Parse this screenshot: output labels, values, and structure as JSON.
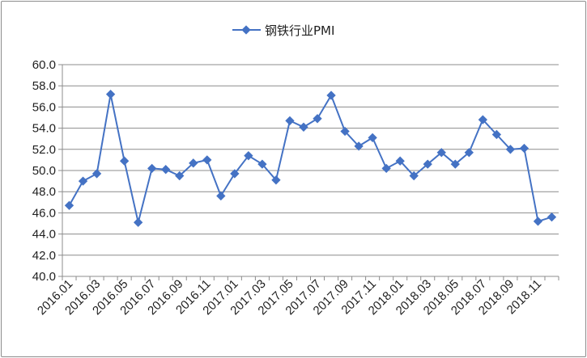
{
  "chart_data": {
    "type": "line",
    "title": "",
    "xlabel": "",
    "ylabel": "",
    "legend": {
      "position": "top-center"
    },
    "grid": {
      "horizontal": true,
      "vertical": false
    },
    "ylim": [
      40.0,
      60.0
    ],
    "yticks": [
      "40.0",
      "42.0",
      "44.0",
      "46.0",
      "48.0",
      "50.0",
      "52.0",
      "54.0",
      "56.0",
      "58.0",
      "60.0"
    ],
    "x_tick_labels": [
      "2016.01",
      "2016.03",
      "2016.05",
      "2016.07",
      "2016.09",
      "2016.11",
      "2017.01",
      "2017.03",
      "2017.05",
      "2017.07",
      "2017.09",
      "2017.11",
      "2018.01",
      "2018.03",
      "2018.05",
      "2018.07",
      "2018.09",
      "2018.11"
    ],
    "categories": [
      "2016.01",
      "2016.02",
      "2016.03",
      "2016.04",
      "2016.05",
      "2016.06",
      "2016.07",
      "2016.08",
      "2016.09",
      "2016.10",
      "2016.11",
      "2016.12",
      "2017.01",
      "2017.02",
      "2017.03",
      "2017.04",
      "2017.05",
      "2017.06",
      "2017.07",
      "2017.08",
      "2017.09",
      "2017.10",
      "2017.11",
      "2017.12",
      "2018.01",
      "2018.02",
      "2018.03",
      "2018.04",
      "2018.05",
      "2018.06",
      "2018.07",
      "2018.08",
      "2018.09",
      "2018.10",
      "2018.11",
      "2018.12"
    ],
    "series": [
      {
        "name": "钢铁行业PMI",
        "color": "#4472c4",
        "values": [
          46.7,
          49.0,
          49.7,
          57.2,
          50.9,
          45.1,
          50.2,
          50.1,
          49.5,
          50.7,
          51.0,
          47.6,
          49.7,
          51.4,
          50.6,
          49.1,
          54.7,
          54.1,
          54.9,
          57.1,
          53.7,
          52.3,
          53.1,
          50.2,
          50.9,
          49.5,
          50.6,
          51.7,
          50.6,
          51.7,
          54.8,
          53.4,
          52.0,
          52.1,
          45.2,
          45.6
        ]
      }
    ]
  }
}
